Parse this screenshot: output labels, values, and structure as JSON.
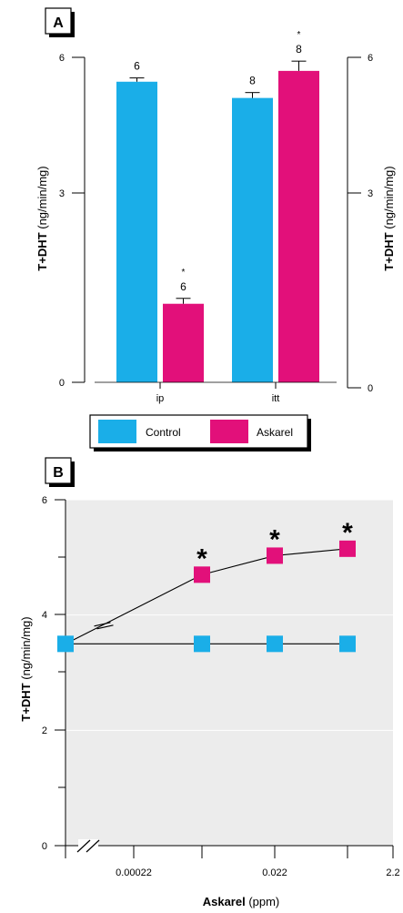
{
  "chart_data": [
    {
      "panel_label": "A",
      "type": "bar",
      "categories": [
        "ip",
        "itt"
      ],
      "series": [
        {
          "name": "Control",
          "values": [
            5.55,
            5.25
          ],
          "errors": [
            0.07,
            0.1
          ],
          "n": [
            "6",
            "8"
          ],
          "asterisk": [
            "",
            ""
          ]
        },
        {
          "name": "Askarel",
          "values": [
            1.45,
            5.75
          ],
          "errors": [
            0.1,
            0.18
          ],
          "n": [
            "6",
            "8"
          ],
          "asterisk": [
            "*",
            "*"
          ]
        }
      ],
      "ylim": [
        0,
        6
      ],
      "yticks": [
        "0",
        "3",
        "6"
      ],
      "ylabel_bold": "T+DHT",
      "ylabel_rest": " (ng/min/mg)",
      "legend_position": "bottom"
    },
    {
      "panel_label": "B",
      "type": "line",
      "x_tick_labels": [
        "0.00022",
        "0.022",
        "2.2"
      ],
      "series": [
        {
          "name": "Control",
          "values": [
            3.5,
            3.5,
            3.5,
            3.5
          ]
        },
        {
          "name": "Askarel",
          "values": [
            3.5,
            4.7,
            5.03,
            5.15
          ],
          "asterisk": [
            "",
            "*",
            "*",
            "*"
          ]
        }
      ],
      "ylim": [
        0,
        6
      ],
      "yticks": [
        "0",
        "2",
        "4",
        "6"
      ],
      "ylabel_bold": "T+DHT",
      "ylabel_rest": " (ng/min/mg)",
      "xlabel_bold": "Askarel",
      "xlabel_rest": " (ppm)",
      "grid": true
    }
  ],
  "colors": {
    "control": "#1aaee8",
    "askarel": "#e2107a",
    "plot_bg": "#ececec"
  }
}
